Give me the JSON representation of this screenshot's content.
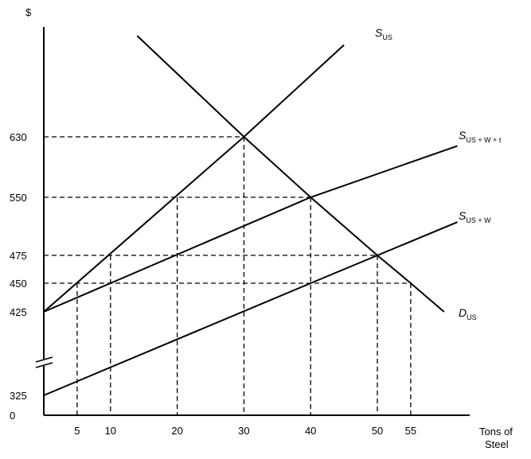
{
  "chart_data": {
    "type": "line",
    "y_axis_label": "$",
    "x_axis_label_lines": [
      "Tons of",
      "Steel"
    ],
    "x_ticks": [
      5,
      10,
      20,
      30,
      40,
      50,
      55
    ],
    "x_origin_label": "0",
    "y_ticks": [
      325,
      425,
      450,
      475,
      550,
      630
    ],
    "y_origin_label": "0",
    "y_axis_break": true,
    "series": [
      {
        "name": "S",
        "sub": "US",
        "points": [
          [
            0,
            425
          ],
          [
            30,
            630
          ],
          [
            45,
            730
          ]
        ]
      },
      {
        "name": "S",
        "sub": "US + W + t",
        "points": [
          [
            0,
            425
          ],
          [
            40,
            550
          ],
          [
            62,
            618
          ]
        ]
      },
      {
        "name": "S",
        "sub": "US + W",
        "points": [
          [
            0,
            325
          ],
          [
            40,
            450
          ],
          [
            62,
            518
          ]
        ]
      },
      {
        "name": "D",
        "sub": "US",
        "points": [
          [
            14,
            740
          ],
          [
            30,
            630
          ],
          [
            40,
            550
          ],
          [
            50,
            475
          ],
          [
            55,
            450
          ],
          [
            60,
            425
          ]
        ]
      }
    ],
    "reference_points": [
      {
        "x": 5,
        "y": 450
      },
      {
        "x": 10,
        "y": 475
      },
      {
        "x": 20,
        "y": 550
      },
      {
        "x": 30,
        "y": 630
      },
      {
        "x": 40,
        "y": 550
      },
      {
        "x": 40,
        "y": 450
      },
      {
        "x": 50,
        "y": 475
      },
      {
        "x": 55,
        "y": 450
      }
    ],
    "grid": false,
    "legend": "none"
  }
}
